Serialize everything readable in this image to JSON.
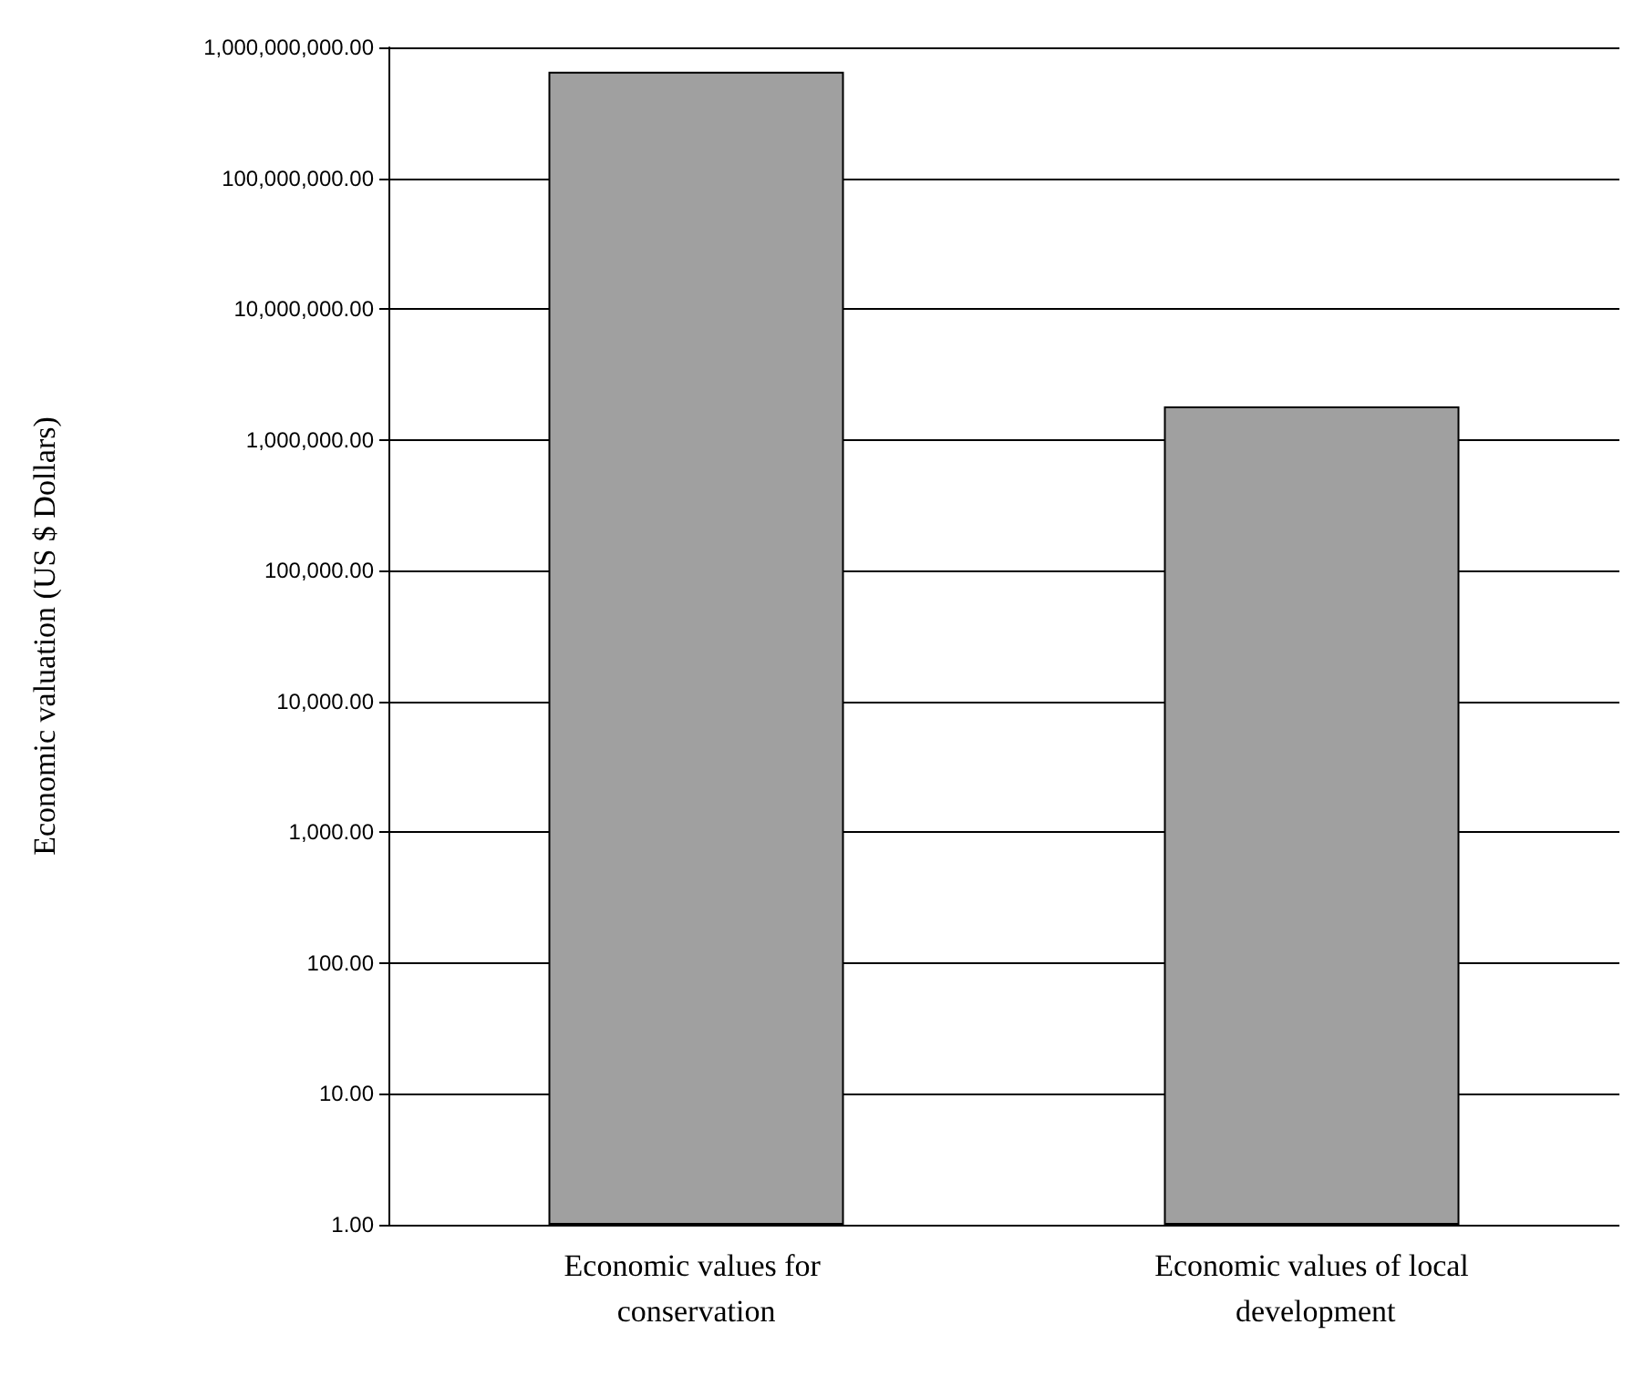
{
  "chart_data": {
    "type": "bar",
    "ylabel": "Economic valuation (US $ Dollars)",
    "categories": [
      "Economic values for conservation",
      "Economic values of local development"
    ],
    "values": [
      650000000,
      1800000
    ],
    "color": "#a0a0a0",
    "log": "y",
    "ylim": [
      1,
      1000000000
    ],
    "yticks": [
      {
        "value": 1,
        "label": "1.00"
      },
      {
        "value": 10,
        "label": "10.00"
      },
      {
        "value": 100,
        "label": "100.00"
      },
      {
        "value": 1000,
        "label": "1,000.00"
      },
      {
        "value": 10000,
        "label": "10,000.00"
      },
      {
        "value": 100000,
        "label": "100,000.00"
      },
      {
        "value": 1000000,
        "label": "1,000,000.00"
      },
      {
        "value": 10000000,
        "label": "10,000,000.00"
      },
      {
        "value": 100000000,
        "label": "100,000,000.00"
      },
      {
        "value": 1000000000,
        "label": "1,000,000,000.00"
      }
    ],
    "grid": "y"
  }
}
